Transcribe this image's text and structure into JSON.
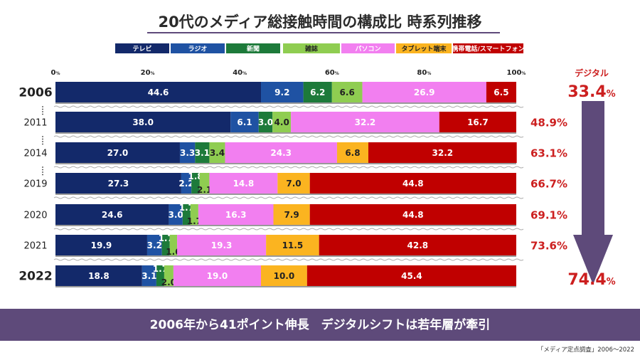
{
  "title": "20代のメディア総接触時間の構成比 時系列推移",
  "legend": [
    {
      "name": "テレビ",
      "color": "#13296a"
    },
    {
      "name": "ラジオ",
      "color": "#1f52a3"
    },
    {
      "name": "新聞",
      "color": "#1d7a3a"
    },
    {
      "name": "雑誌",
      "color": "#8fcd51"
    },
    {
      "name": "パソコン",
      "color": "#f27ff0"
    },
    {
      "name": "タブレット端末",
      "color": "#fbb420"
    },
    {
      "name": "携帯電話/スマートフォン",
      "color": "#c00000"
    }
  ],
  "chart_data": {
    "type": "bar",
    "orientation": "horizontal",
    "stacked": true,
    "title": "20代のメディア総接触時間の構成比 時系列推移",
    "categories": [
      "2006",
      "2011",
      "2014",
      "2019",
      "2020",
      "2021",
      "2022"
    ],
    "series": [
      {
        "name": "テレビ",
        "values": [
          44.6,
          38.0,
          27.0,
          27.3,
          24.6,
          19.9,
          18.8
        ]
      },
      {
        "name": "ラジオ",
        "values": [
          9.2,
          6.1,
          3.3,
          2.2,
          3.0,
          3.2,
          3.1
        ]
      },
      {
        "name": "新聞",
        "values": [
          6.2,
          3.0,
          3.1,
          1.8,
          1.7,
          1.7,
          1.7
        ]
      },
      {
        "name": "雑誌",
        "values": [
          6.6,
          4.0,
          3.4,
          2.1,
          1.7,
          1.6,
          2.0
        ]
      },
      {
        "name": "パソコン",
        "values": [
          26.9,
          32.2,
          24.3,
          14.8,
          16.3,
          19.3,
          19.0
        ]
      },
      {
        "name": "タブレット端末",
        "values": [
          null,
          null,
          6.8,
          7.0,
          7.9,
          11.5,
          10.0
        ]
      },
      {
        "name": "携帯電話/スマートフォン",
        "values": [
          6.5,
          16.7,
          32.2,
          44.8,
          44.8,
          42.8,
          45.4
        ]
      }
    ],
    "xlim": [
      0,
      100
    ],
    "ticks": [
      "0",
      "20",
      "40",
      "60",
      "80",
      "100"
    ],
    "tick_unit": "%",
    "digital_share": [
      "33.4",
      "48.9",
      "63.1",
      "66.7",
      "69.1",
      "73.6",
      "74.4"
    ],
    "digital_label": "デジタル",
    "grid": false,
    "legend_position": "top"
  },
  "banner": "2006年から41ポイント伸長　デジタルシフトは若年層が牽引",
  "source": "「メディア定点調査」2006～2022",
  "colors": {
    "highlight_red": "#cc1f1f",
    "banner_bg": "#5e4a7a",
    "arrow": "#5e4a7a",
    "title_underline": "#5e4a7a"
  }
}
